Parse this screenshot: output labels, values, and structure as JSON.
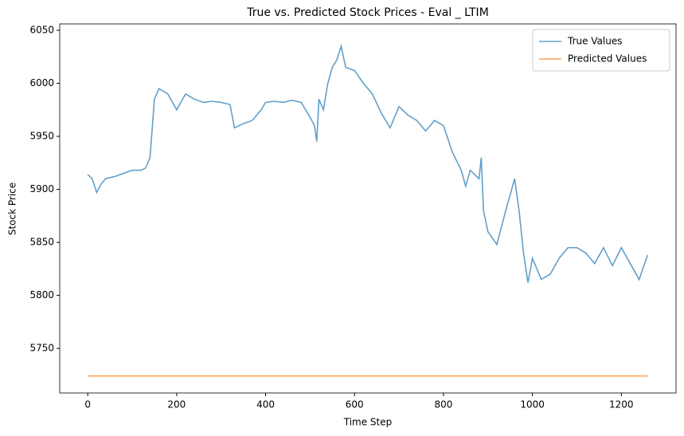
{
  "chart_data": {
    "type": "line",
    "title": "True vs. Predicted Stock Prices - Eval _ LTIM",
    "x_label": "Time Step",
    "y_label": "Stock Price",
    "series": [
      {
        "name": "True Values",
        "color": "#1f77b4",
        "x": [
          0,
          10,
          20,
          30,
          40,
          60,
          80,
          100,
          120,
          130,
          140,
          150,
          160,
          180,
          200,
          220,
          240,
          260,
          280,
          300,
          320,
          330,
          350,
          370,
          390,
          400,
          420,
          440,
          460,
          480,
          500,
          510,
          515,
          520,
          530,
          540,
          550,
          560,
          570,
          580,
          600,
          620,
          640,
          660,
          680,
          700,
          720,
          740,
          760,
          780,
          800,
          820,
          840,
          850,
          860,
          880,
          885,
          890,
          900,
          920,
          940,
          960,
          970,
          980,
          990,
          1000,
          1020,
          1040,
          1060,
          1080,
          1100,
          1120,
          1140,
          1160,
          1180,
          1200,
          1220,
          1240,
          1259
        ],
        "values": [
          5914,
          5910,
          5897,
          5905,
          5910,
          5912,
          5915,
          5918,
          5918,
          5920,
          5930,
          5985,
          5995,
          5990,
          5975,
          5990,
          5985,
          5982,
          5983,
          5982,
          5980,
          5958,
          5962,
          5965,
          5975,
          5982,
          5983,
          5982,
          5984,
          5982,
          5968,
          5960,
          5945,
          5985,
          5975,
          6000,
          6015,
          6022,
          6035,
          6015,
          6012,
          6000,
          5990,
          5972,
          5958,
          5978,
          5970,
          5965,
          5955,
          5965,
          5960,
          5935,
          5918,
          5903,
          5918,
          5910,
          5930,
          5880,
          5860,
          5848,
          5880,
          5910,
          5880,
          5840,
          5812,
          5835,
          5815,
          5820,
          5835,
          5845,
          5845,
          5840,
          5830,
          5845,
          5828,
          5845,
          5830,
          5815,
          5838
        ]
      },
      {
        "name": "Predicted Values",
        "color": "#ff7f0e",
        "x": [
          0,
          1259
        ],
        "values": [
          5724,
          5724
        ]
      }
    ],
    "xlim": [
      -63,
      1323
    ],
    "ylim": [
      5708,
      6056
    ],
    "xticks": [
      0,
      200,
      400,
      600,
      800,
      1000,
      1200
    ],
    "yticks": [
      5750,
      5800,
      5850,
      5900,
      5950,
      6000,
      6050
    ],
    "legend": "upper right"
  }
}
